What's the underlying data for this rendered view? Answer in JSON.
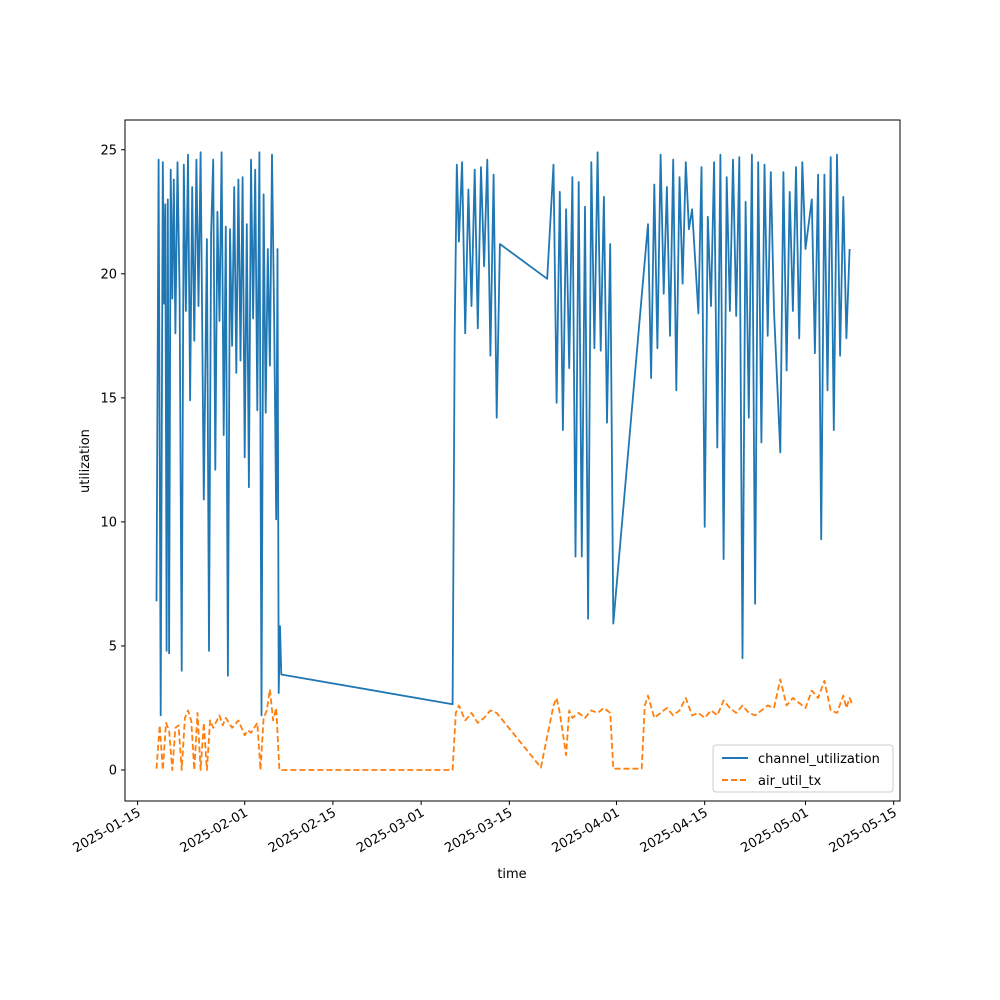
{
  "chart_data": {
    "type": "line",
    "title": "",
    "xlabel": "time",
    "ylabel": "utilization",
    "x_type": "date",
    "xlim": [
      "2025-01-13",
      "2025-05-16"
    ],
    "ylim": [
      -1.25,
      26.2
    ],
    "xticks": [
      "2025-01-15",
      "2025-02-01",
      "2025-02-15",
      "2025-03-01",
      "2025-03-15",
      "2025-04-01",
      "2025-04-15",
      "2025-05-01",
      "2025-05-15"
    ],
    "yticks": [
      0,
      5,
      10,
      15,
      20,
      25
    ],
    "grid": false,
    "legend": {
      "placement": "lower right"
    },
    "series": [
      {
        "name": "channel_utilization",
        "color": "#1f77b4",
        "style": "solid",
        "points": [
          [
            "2025-01-18",
            6.8
          ],
          [
            "2025-01-18",
            24.6
          ],
          [
            "2025-01-18",
            2.2
          ],
          [
            "2025-01-19",
            24.5
          ],
          [
            "2025-01-19",
            18.8
          ],
          [
            "2025-01-19",
            22.8
          ],
          [
            "2025-01-19",
            4.8
          ],
          [
            "2025-01-19",
            23.0
          ],
          [
            "2025-01-20",
            4.7
          ],
          [
            "2025-01-20",
            24.2
          ],
          [
            "2025-01-20",
            19.0
          ],
          [
            "2025-01-20",
            23.8
          ],
          [
            "2025-01-21",
            17.6
          ],
          [
            "2025-01-21",
            24.5
          ],
          [
            "2025-01-21",
            19.2
          ],
          [
            "2025-01-22",
            4.0
          ],
          [
            "2025-01-22",
            24.4
          ],
          [
            "2025-01-22",
            18.5
          ],
          [
            "2025-01-23",
            24.8
          ],
          [
            "2025-01-23",
            14.9
          ],
          [
            "2025-01-23",
            23.5
          ],
          [
            "2025-01-24",
            17.3
          ],
          [
            "2025-01-24",
            24.6
          ],
          [
            "2025-01-24",
            18.7
          ],
          [
            "2025-01-25",
            24.9
          ],
          [
            "2025-01-25",
            10.9
          ],
          [
            "2025-01-26",
            21.4
          ],
          [
            "2025-01-26",
            4.8
          ],
          [
            "2025-01-26",
            21.6
          ],
          [
            "2025-01-27",
            24.6
          ],
          [
            "2025-01-27",
            12.1
          ],
          [
            "2025-01-27",
            22.5
          ],
          [
            "2025-01-28",
            18.1
          ],
          [
            "2025-01-28",
            24.9
          ],
          [
            "2025-01-28",
            13.5
          ],
          [
            "2025-01-29",
            21.9
          ],
          [
            "2025-01-29",
            3.8
          ],
          [
            "2025-01-29",
            21.8
          ],
          [
            "2025-01-30",
            17.1
          ],
          [
            "2025-01-30",
            23.5
          ],
          [
            "2025-01-30",
            16.0
          ],
          [
            "2025-01-31",
            23.8
          ],
          [
            "2025-01-31",
            16.5
          ],
          [
            "2025-01-31",
            23.9
          ],
          [
            "2025-02-01",
            12.6
          ],
          [
            "2025-02-01",
            22.0
          ],
          [
            "2025-02-01",
            11.4
          ],
          [
            "2025-02-02",
            24.6
          ],
          [
            "2025-02-02",
            18.2
          ],
          [
            "2025-02-02",
            24.2
          ],
          [
            "2025-02-03",
            14.5
          ],
          [
            "2025-02-03",
            24.9
          ],
          [
            "2025-02-03",
            2.2
          ],
          [
            "2025-02-04",
            23.2
          ],
          [
            "2025-02-04",
            14.4
          ],
          [
            "2025-02-04",
            21.0
          ],
          [
            "2025-02-05",
            16.3
          ],
          [
            "2025-02-05",
            24.8
          ],
          [
            "2025-02-05",
            18.4
          ],
          [
            "2025-02-06",
            10.1
          ],
          [
            "2025-02-06",
            21.0
          ],
          [
            "2025-02-06",
            3.1
          ],
          [
            "2025-02-06",
            5.8
          ],
          [
            "2025-02-06",
            3.85
          ],
          [
            "2025-03-06",
            2.65
          ],
          [
            "2025-03-06",
            17.6
          ],
          [
            "2025-03-06",
            24.4
          ],
          [
            "2025-03-07",
            21.3
          ],
          [
            "2025-03-07",
            24.5
          ],
          [
            "2025-03-08",
            17.6
          ],
          [
            "2025-03-08",
            23.4
          ],
          [
            "2025-03-09",
            18.7
          ],
          [
            "2025-03-09",
            24.2
          ],
          [
            "2025-03-10",
            17.8
          ],
          [
            "2025-03-10",
            24.3
          ],
          [
            "2025-03-11",
            20.3
          ],
          [
            "2025-03-11",
            24.6
          ],
          [
            "2025-03-12",
            16.7
          ],
          [
            "2025-03-12",
            24.0
          ],
          [
            "2025-03-13",
            14.2
          ],
          [
            "2025-03-13",
            21.2
          ],
          [
            "2025-03-21",
            19.8
          ],
          [
            "2025-03-22",
            24.4
          ],
          [
            "2025-03-22",
            14.8
          ],
          [
            "2025-03-23",
            23.3
          ],
          [
            "2025-03-23",
            13.7
          ],
          [
            "2025-03-24",
            22.6
          ],
          [
            "2025-03-24",
            16.2
          ],
          [
            "2025-03-25",
            23.9
          ],
          [
            "2025-03-25",
            8.6
          ],
          [
            "2025-03-26",
            23.7
          ],
          [
            "2025-03-26",
            8.6
          ],
          [
            "2025-03-27",
            22.7
          ],
          [
            "2025-03-27",
            6.1
          ],
          [
            "2025-03-28",
            24.5
          ],
          [
            "2025-03-28",
            17.0
          ],
          [
            "2025-03-29",
            24.9
          ],
          [
            "2025-03-29",
            16.9
          ],
          [
            "2025-03-30",
            23.1
          ],
          [
            "2025-03-30",
            14.0
          ],
          [
            "2025-03-31",
            21.2
          ],
          [
            "2025-03-31",
            5.9
          ],
          [
            "2025-04-05",
            19.1
          ],
          [
            "2025-04-06",
            22.0
          ],
          [
            "2025-04-06",
            15.8
          ],
          [
            "2025-04-07",
            23.6
          ],
          [
            "2025-04-07",
            17.0
          ],
          [
            "2025-04-08",
            24.8
          ],
          [
            "2025-04-08",
            19.2
          ],
          [
            "2025-04-09",
            23.5
          ],
          [
            "2025-04-09",
            17.5
          ],
          [
            "2025-04-10",
            24.6
          ],
          [
            "2025-04-10",
            15.3
          ],
          [
            "2025-04-11",
            23.9
          ],
          [
            "2025-04-11",
            19.6
          ],
          [
            "2025-04-12",
            24.5
          ],
          [
            "2025-04-12",
            21.8
          ],
          [
            "2025-04-13",
            22.6
          ],
          [
            "2025-04-14",
            18.4
          ],
          [
            "2025-04-14",
            24.3
          ],
          [
            "2025-04-15",
            9.8
          ],
          [
            "2025-04-15",
            22.3
          ],
          [
            "2025-04-16",
            18.7
          ],
          [
            "2025-04-16",
            24.5
          ],
          [
            "2025-04-17",
            13.0
          ],
          [
            "2025-04-17",
            24.8
          ],
          [
            "2025-04-18",
            8.5
          ],
          [
            "2025-04-18",
            23.9
          ],
          [
            "2025-04-19",
            18.5
          ],
          [
            "2025-04-19",
            24.6
          ],
          [
            "2025-04-20",
            18.3
          ],
          [
            "2025-04-20",
            24.7
          ],
          [
            "2025-04-21",
            4.5
          ],
          [
            "2025-04-21",
            22.9
          ],
          [
            "2025-04-22",
            14.2
          ],
          [
            "2025-04-22",
            24.8
          ],
          [
            "2025-04-23",
            6.7
          ],
          [
            "2025-04-23",
            24.5
          ],
          [
            "2025-04-24",
            13.2
          ],
          [
            "2025-04-24",
            24.4
          ],
          [
            "2025-04-25",
            17.5
          ],
          [
            "2025-04-25",
            24.1
          ],
          [
            "2025-04-26",
            18.5
          ],
          [
            "2025-04-27",
            12.8
          ],
          [
            "2025-04-27",
            24.1
          ],
          [
            "2025-04-28",
            16.1
          ],
          [
            "2025-04-28",
            23.3
          ],
          [
            "2025-04-29",
            18.5
          ],
          [
            "2025-04-29",
            24.3
          ],
          [
            "2025-04-30",
            17.4
          ],
          [
            "2025-04-30",
            24.5
          ],
          [
            "2025-05-01",
            21.0
          ],
          [
            "2025-05-02",
            23.0
          ],
          [
            "2025-05-02",
            16.8
          ],
          [
            "2025-05-03",
            24.0
          ],
          [
            "2025-05-03",
            9.3
          ],
          [
            "2025-05-04",
            24.0
          ],
          [
            "2025-05-04",
            15.3
          ],
          [
            "2025-05-05",
            24.7
          ],
          [
            "2025-05-05",
            13.7
          ],
          [
            "2025-05-06",
            24.8
          ],
          [
            "2025-05-06",
            16.7
          ],
          [
            "2025-05-07",
            23.1
          ],
          [
            "2025-05-07",
            17.4
          ],
          [
            "2025-05-08",
            21.0
          ]
        ]
      },
      {
        "name": "air_util_tx",
        "color": "#ff7f0e",
        "style": "dashed",
        "points": [
          [
            "2025-01-18",
            0.05
          ],
          [
            "2025-01-18",
            1.8
          ],
          [
            "2025-01-19",
            0.0
          ],
          [
            "2025-01-19",
            1.9
          ],
          [
            "2025-01-20",
            1.6
          ],
          [
            "2025-01-20",
            0.0
          ],
          [
            "2025-01-21",
            1.7
          ],
          [
            "2025-01-21",
            1.8
          ],
          [
            "2025-01-22",
            0.0
          ],
          [
            "2025-01-22",
            2.1
          ],
          [
            "2025-01-23",
            2.4
          ],
          [
            "2025-01-23",
            2.0
          ],
          [
            "2025-01-24",
            0.0
          ],
          [
            "2025-01-24",
            2.3
          ],
          [
            "2025-01-25",
            0.0
          ],
          [
            "2025-01-25",
            1.9
          ],
          [
            "2025-01-26",
            0.0
          ],
          [
            "2025-01-26",
            2.0
          ],
          [
            "2025-01-27",
            1.7
          ],
          [
            "2025-01-28",
            2.2
          ],
          [
            "2025-01-28",
            1.8
          ],
          [
            "2025-01-29",
            2.1
          ],
          [
            "2025-01-30",
            1.7
          ],
          [
            "2025-01-31",
            2.0
          ],
          [
            "2025-02-01",
            1.4
          ],
          [
            "2025-02-01",
            1.6
          ],
          [
            "2025-02-02",
            1.5
          ],
          [
            "2025-02-03",
            1.9
          ],
          [
            "2025-02-03",
            0.0
          ],
          [
            "2025-02-04",
            2.1
          ],
          [
            "2025-02-04",
            2.4
          ],
          [
            "2025-02-05",
            3.25
          ],
          [
            "2025-02-05",
            2.0
          ],
          [
            "2025-02-06",
            2.5
          ],
          [
            "2025-02-06",
            0.0
          ],
          [
            "2025-03-06",
            0.0
          ],
          [
            "2025-03-06",
            2.3
          ],
          [
            "2025-03-07",
            2.6
          ],
          [
            "2025-03-08",
            2.0
          ],
          [
            "2025-03-09",
            2.3
          ],
          [
            "2025-03-10",
            1.9
          ],
          [
            "2025-03-11",
            2.1
          ],
          [
            "2025-03-12",
            2.4
          ],
          [
            "2025-03-13",
            2.3
          ],
          [
            "2025-03-20",
            0.1
          ],
          [
            "2025-03-22",
            2.6
          ],
          [
            "2025-03-22",
            2.9
          ],
          [
            "2025-03-23",
            2.3
          ],
          [
            "2025-03-24",
            0.6
          ],
          [
            "2025-03-24",
            2.4
          ],
          [
            "2025-03-25",
            2.1
          ],
          [
            "2025-03-26",
            2.3
          ],
          [
            "2025-03-27",
            2.1
          ],
          [
            "2025-03-28",
            2.4
          ],
          [
            "2025-03-29",
            2.3
          ],
          [
            "2025-03-30",
            2.5
          ],
          [
            "2025-03-31",
            2.3
          ],
          [
            "2025-03-31",
            0.05
          ],
          [
            "2025-04-05",
            0.05
          ],
          [
            "2025-04-05",
            2.6
          ],
          [
            "2025-04-06",
            3.0
          ],
          [
            "2025-04-07",
            2.1
          ],
          [
            "2025-04-08",
            2.3
          ],
          [
            "2025-04-09",
            2.5
          ],
          [
            "2025-04-10",
            2.2
          ],
          [
            "2025-04-11",
            2.4
          ],
          [
            "2025-04-12",
            2.9
          ],
          [
            "2025-04-13",
            2.2
          ],
          [
            "2025-04-14",
            2.3
          ],
          [
            "2025-04-15",
            2.1
          ],
          [
            "2025-04-16",
            2.4
          ],
          [
            "2025-04-17",
            2.2
          ],
          [
            "2025-04-18",
            2.8
          ],
          [
            "2025-04-19",
            2.5
          ],
          [
            "2025-04-20",
            2.3
          ],
          [
            "2025-04-21",
            2.6
          ],
          [
            "2025-04-22",
            2.3
          ],
          [
            "2025-04-23",
            2.2
          ],
          [
            "2025-04-24",
            2.4
          ],
          [
            "2025-04-25",
            2.6
          ],
          [
            "2025-04-26",
            2.5
          ],
          [
            "2025-04-27",
            3.65
          ],
          [
            "2025-04-28",
            2.6
          ],
          [
            "2025-04-29",
            2.9
          ],
          [
            "2025-04-30",
            2.7
          ],
          [
            "2025-05-01",
            2.5
          ],
          [
            "2025-05-02",
            3.2
          ],
          [
            "2025-05-03",
            2.9
          ],
          [
            "2025-05-04",
            3.6
          ],
          [
            "2025-05-05",
            2.4
          ],
          [
            "2025-05-06",
            2.3
          ],
          [
            "2025-05-07",
            3.0
          ],
          [
            "2025-05-07",
            2.5
          ],
          [
            "2025-05-08",
            2.9
          ],
          [
            "2025-05-08",
            2.6
          ]
        ]
      }
    ]
  }
}
